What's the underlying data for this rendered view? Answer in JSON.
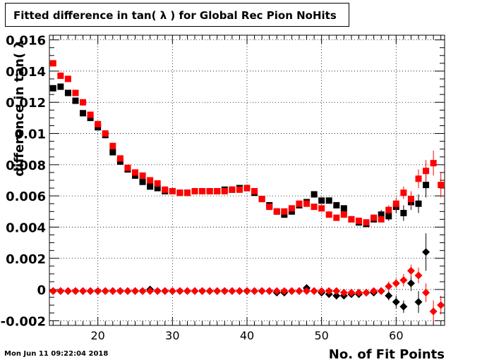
{
  "header": {
    "title": "Fitted difference in tan( λ ) for Global Rec Pion NoHits"
  },
  "footer": {
    "timestamp": "Mon Jun 11 09:22:04 2018"
  },
  "chart_data": {
    "type": "scatter",
    "title": "Fitted difference in tan( λ ) for Global Rec Pion NoHits",
    "xlabel": "No. of Fit Points",
    "ylabel": "difference in tan( λ",
    "xlim": [
      13.5,
      66.5
    ],
    "ylim": [
      -0.0023,
      0.0163
    ],
    "grid": true,
    "x_ticks": [
      20,
      30,
      40,
      50,
      60
    ],
    "y_ticks": [
      -0.002,
      0,
      0.002,
      0.004,
      0.006,
      0.008,
      0.01,
      0.012,
      0.014,
      0.016
    ],
    "x_tick_labels": [
      "20",
      "30",
      "40",
      "50",
      "60"
    ],
    "y_tick_labels": [
      "-0.002",
      "0",
      "0.002",
      "0.004",
      "0.006",
      "0.008",
      "0.01",
      "0.012",
      "0.014",
      "0.016"
    ],
    "x": [
      14,
      15,
      16,
      17,
      18,
      19,
      20,
      21,
      22,
      23,
      24,
      25,
      26,
      27,
      28,
      29,
      30,
      31,
      32,
      33,
      34,
      35,
      36,
      37,
      38,
      39,
      40,
      41,
      42,
      43,
      44,
      45,
      46,
      47,
      48,
      49,
      50,
      51,
      52,
      53,
      54,
      55,
      56,
      57,
      58,
      59,
      60,
      61,
      62,
      63,
      64,
      65,
      66
    ],
    "series": [
      {
        "color": "#000000",
        "marker": "square",
        "values": [
          0.0129,
          0.013,
          0.0126,
          0.0121,
          0.0113,
          0.011,
          0.0104,
          0.0099,
          0.0088,
          0.0082,
          0.0077,
          0.0073,
          0.0069,
          0.0066,
          0.0065,
          0.0063,
          0.0063,
          0.0062,
          0.0062,
          0.0063,
          0.0063,
          0.0063,
          0.0063,
          0.0064,
          0.0064,
          0.0065,
          0.0065,
          0.0062,
          0.0058,
          0.0054,
          0.005,
          0.0048,
          0.005,
          0.0054,
          0.0056,
          0.0061,
          0.0057,
          0.0057,
          0.0054,
          0.0052,
          0.0045,
          0.0043,
          0.0042,
          0.0045,
          0.0048,
          0.0047,
          0.0053,
          0.0049,
          0.0056,
          0.0055,
          0.0067,
          null,
          null
        ],
        "errors": [
          0.0002,
          0.0002,
          0.0002,
          0.0002,
          0.0002,
          0.0002,
          0.0002,
          0.0002,
          0.0002,
          0.0002,
          0.0002,
          0.0002,
          0.0002,
          0.0002,
          0.0002,
          0.0002,
          0.0002,
          0.0002,
          0.0002,
          0.0002,
          0.0002,
          0.0002,
          0.0002,
          0.0002,
          0.0002,
          0.0002,
          0.0002,
          0.0002,
          0.0002,
          0.0002,
          0.0002,
          0.0002,
          0.0002,
          0.0002,
          0.0002,
          0.0002,
          0.0002,
          0.0002,
          0.0002,
          0.0002,
          0.0002,
          0.0002,
          0.0002,
          0.0002,
          0.0003,
          0.0003,
          0.0004,
          0.0005,
          0.0005,
          0.0006,
          0.0008,
          null,
          null
        ]
      },
      {
        "color": "#ff0000",
        "marker": "square",
        "values": [
          0.0145,
          0.0137,
          0.0135,
          0.0126,
          0.012,
          0.0112,
          0.0106,
          0.01,
          0.0092,
          0.0084,
          0.0078,
          0.0075,
          0.0073,
          0.007,
          0.0068,
          0.0064,
          0.0063,
          0.0062,
          0.0062,
          0.0063,
          0.0063,
          0.0063,
          0.0063,
          0.0063,
          0.0064,
          0.0064,
          0.0065,
          0.0063,
          0.0058,
          0.0053,
          0.005,
          0.005,
          0.0052,
          0.0055,
          0.0055,
          0.0053,
          0.0052,
          0.0048,
          0.0046,
          0.0048,
          0.0045,
          0.0044,
          0.0043,
          0.0046,
          0.0045,
          0.0051,
          0.0055,
          0.0062,
          0.0058,
          0.0071,
          0.0076,
          0.0081,
          0.0067
        ],
        "errors": [
          0.0002,
          0.0002,
          0.0002,
          0.0002,
          0.0002,
          0.0002,
          0.0002,
          0.0002,
          0.0002,
          0.0002,
          0.0002,
          0.0002,
          0.0002,
          0.0002,
          0.0002,
          0.0002,
          0.0002,
          0.0002,
          0.0002,
          0.0002,
          0.0002,
          0.0002,
          0.0002,
          0.0002,
          0.0002,
          0.0002,
          0.0002,
          0.0002,
          0.0002,
          0.0002,
          0.0002,
          0.0002,
          0.0002,
          0.0002,
          0.0002,
          0.0002,
          0.0002,
          0.0002,
          0.0002,
          0.0002,
          0.0002,
          0.0002,
          0.0002,
          0.0002,
          0.0002,
          0.0003,
          0.0004,
          0.0004,
          0.0005,
          0.0006,
          0.0007,
          0.0008,
          0.0008
        ]
      },
      {
        "color": "#000000",
        "marker": "diamond",
        "values": [
          -0.0001,
          -0.0001,
          -0.0001,
          -0.0001,
          -0.0001,
          -0.0001,
          -0.0001,
          -0.0001,
          -0.0001,
          -0.0001,
          -0.0001,
          -0.0001,
          -0.0001,
          0.0,
          -0.0001,
          -0.0001,
          -0.0001,
          -0.0001,
          -0.0001,
          -0.0001,
          -0.0001,
          -0.0001,
          -0.0001,
          -0.0001,
          -0.0001,
          -0.0001,
          -0.0001,
          -0.0001,
          -0.0001,
          -0.0001,
          -0.0002,
          -0.0002,
          -0.0001,
          -0.0001,
          0.0001,
          -0.0001,
          -0.0002,
          -0.0003,
          -0.0004,
          -0.0004,
          -0.0003,
          -0.0003,
          -0.0002,
          -0.0002,
          -0.0001,
          -0.0004,
          -0.0008,
          -0.0011,
          0.0004,
          -0.0008,
          0.0024,
          null,
          null
        ],
        "errors": [
          0.0001,
          0.0001,
          0.0001,
          0.0001,
          0.0001,
          0.0001,
          0.0001,
          0.0001,
          0.0001,
          0.0001,
          0.0001,
          0.0001,
          0.0001,
          0.0001,
          0.0001,
          0.0001,
          0.0001,
          0.0001,
          0.0001,
          0.0001,
          0.0001,
          0.0001,
          0.0001,
          0.0001,
          0.0001,
          0.0001,
          0.0001,
          0.0001,
          0.0001,
          0.0001,
          0.0001,
          0.0001,
          0.0001,
          0.0001,
          0.0001,
          0.0001,
          0.0001,
          0.0001,
          0.0001,
          0.0001,
          0.0001,
          0.0001,
          0.0001,
          0.0001,
          0.0002,
          0.0003,
          0.0004,
          0.0004,
          0.0005,
          0.0007,
          0.0012,
          null,
          null
        ]
      },
      {
        "color": "#ff0000",
        "marker": "diamond",
        "values": [
          -0.0001,
          -0.0001,
          -0.0001,
          -0.0001,
          -0.0001,
          -0.0001,
          -0.0001,
          -0.0001,
          -0.0001,
          -0.0001,
          -0.0001,
          -0.0001,
          -0.0001,
          -0.0001,
          -0.0001,
          -0.0001,
          -0.0001,
          -0.0001,
          -0.0001,
          -0.0001,
          -0.0001,
          -0.0001,
          -0.0001,
          -0.0001,
          -0.0001,
          -0.0001,
          -0.0001,
          -0.0001,
          -0.0001,
          -0.0001,
          -0.0001,
          -0.0001,
          -0.0001,
          -0.0001,
          -0.0001,
          -0.0001,
          -0.0001,
          -0.0001,
          -0.0001,
          -0.0002,
          -0.0002,
          -0.0002,
          -0.0002,
          -0.0001,
          -0.0001,
          0.0002,
          0.0004,
          0.0006,
          0.0012,
          0.0009,
          -0.0002,
          -0.0014,
          -0.001
        ],
        "errors": [
          0.0001,
          0.0001,
          0.0001,
          0.0001,
          0.0001,
          0.0001,
          0.0001,
          0.0001,
          0.0001,
          0.0001,
          0.0001,
          0.0001,
          0.0001,
          0.0001,
          0.0001,
          0.0001,
          0.0001,
          0.0001,
          0.0001,
          0.0001,
          0.0001,
          0.0001,
          0.0001,
          0.0001,
          0.0001,
          0.0001,
          0.0001,
          0.0001,
          0.0001,
          0.0001,
          0.0001,
          0.0001,
          0.0001,
          0.0001,
          0.0001,
          0.0001,
          0.0001,
          0.0001,
          0.0001,
          0.0001,
          0.0001,
          0.0001,
          0.0001,
          0.0001,
          0.0002,
          0.0003,
          0.0003,
          0.0004,
          0.0004,
          0.0005,
          0.0006,
          0.0007,
          0.0006
        ]
      }
    ]
  }
}
